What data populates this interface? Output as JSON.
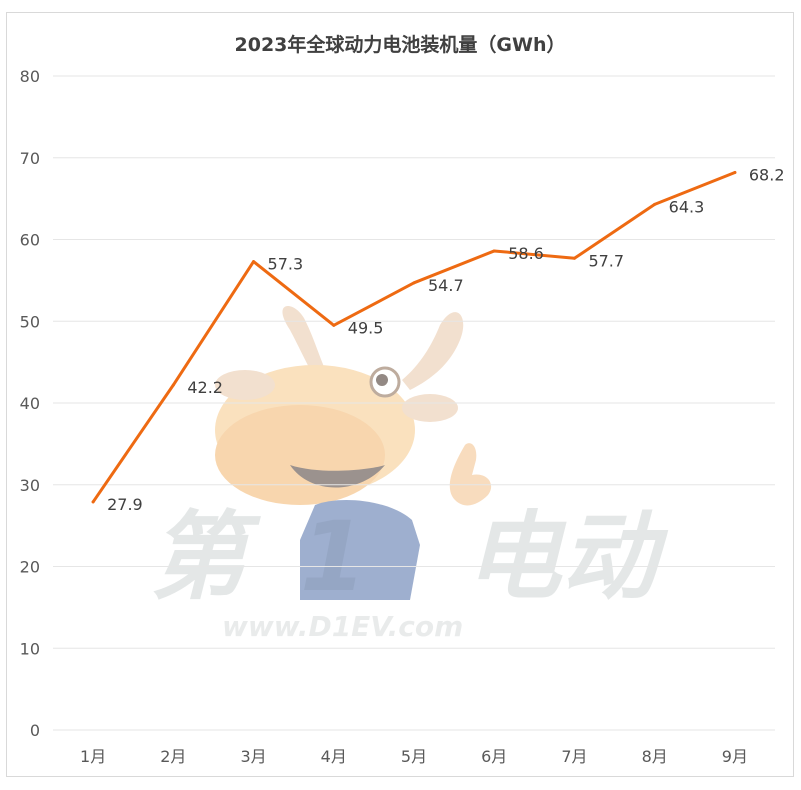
{
  "watermark": {
    "left_text": "第",
    "digit": "1",
    "right_text": "电动",
    "url": "www.D1EV.com"
  },
  "chart_data": {
    "type": "line",
    "title": "2023年全球动力电池装机量（GWh）",
    "categories": [
      "1月",
      "2月",
      "3月",
      "4月",
      "5月",
      "6月",
      "7月",
      "8月",
      "9月"
    ],
    "series": [
      {
        "values": [
          27.9,
          42.2,
          57.3,
          49.5,
          54.7,
          58.6,
          57.7,
          64.3,
          68.2
        ],
        "color": "#ee6a12"
      }
    ],
    "yticks": [
      0,
      10,
      20,
      30,
      40,
      50,
      60,
      70,
      80
    ],
    "ylim": [
      0,
      80
    ],
    "grid": true,
    "legend": "none"
  }
}
